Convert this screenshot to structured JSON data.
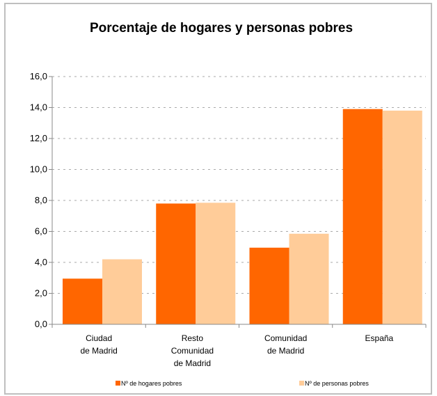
{
  "chart_data": {
    "type": "bar",
    "title": "Porcentaje de hogares y personas pobres",
    "categories": [
      "Ciudad\nde Madrid",
      "Resto\nComunidad\nde Madrid",
      "Comunidad\nde Madrid",
      "España"
    ],
    "series": [
      {
        "name": "Nº de hogares pobres",
        "color": "#ff6600",
        "values": [
          2.95,
          7.8,
          4.95,
          13.9
        ]
      },
      {
        "name": "Nº de personas pobres",
        "color": "#ffcc99",
        "values": [
          4.2,
          7.85,
          5.85,
          13.8
        ]
      }
    ],
    "ylim": [
      0,
      16
    ],
    "yticks": [
      {
        "value": 0,
        "label": "0,0"
      },
      {
        "value": 2,
        "label": "2,0"
      },
      {
        "value": 4,
        "label": "4,0"
      },
      {
        "value": 6,
        "label": "6,0"
      },
      {
        "value": 8,
        "label": "8,0"
      },
      {
        "value": 10,
        "label": "10,0"
      },
      {
        "value": 12,
        "label": "12,0"
      },
      {
        "value": 14,
        "label": "14,0"
      },
      {
        "value": 16,
        "label": "16,0"
      }
    ],
    "grid": true,
    "legend": "bottom"
  }
}
